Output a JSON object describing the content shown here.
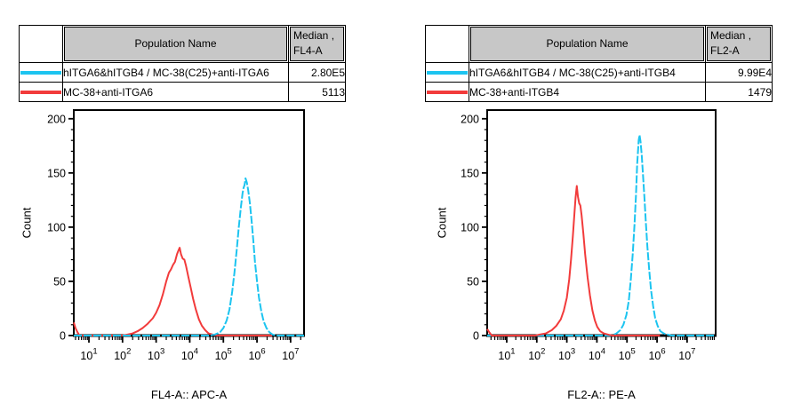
{
  "figure": {
    "background": "#ffffff"
  },
  "colors": {
    "cyan_series": "#1cc4f0",
    "red_series": "#f23b3b",
    "header_bg": "#c7c7c7",
    "axis": "#000000"
  },
  "panels": [
    {
      "table": {
        "header": {
          "population": "Population Name",
          "median_line1": "Median ,",
          "median_line2": "FL4-A"
        },
        "rows": [
          {
            "color": "#1cc4f0",
            "name": "hITGA6&hITGB4 / MC-38(C25)+anti-ITGA6",
            "median": "2.80E5"
          },
          {
            "color": "#f23b3b",
            "name": "MC-38+anti-ITGA6",
            "median": "5113"
          }
        ]
      }
    },
    {
      "table": {
        "header": {
          "population": "Population Name",
          "median_line1": "Median ,",
          "median_line2": "FL2-A"
        },
        "rows": [
          {
            "color": "#1cc4f0",
            "name": "hITGA6&hITGB4 / MC-38(C25)+anti-ITGB4",
            "median": "9.99E4"
          },
          {
            "color": "#f23b3b",
            "name": "MC-38+anti-ITGB4",
            "median": "1479"
          }
        ]
      }
    }
  ],
  "chart_data": [
    {
      "type": "line",
      "subtype": "flow-cytometry-histogram",
      "xlabel": "FL4-A:: APC-A",
      "ylabel": "Count",
      "x_scale": "log10",
      "x_log_range": [
        0.55,
        7.4
      ],
      "x_tick_exponents": [
        1,
        2,
        3,
        4,
        5,
        6,
        7
      ],
      "ylim": [
        0,
        208
      ],
      "y_ticks": [
        0,
        50,
        100,
        150,
        200
      ],
      "y_minor_step": 10,
      "grid": false,
      "legend_position": "table-above",
      "series": [
        {
          "name": "MC-38+anti-ITGA6",
          "color": "#f23b3b",
          "median": 5113,
          "line_style": "solid",
          "points": [
            [
              0.55,
              12
            ],
            [
              0.6,
              7
            ],
            [
              0.66,
              3
            ],
            [
              0.72,
              0
            ],
            [
              2.0,
              0
            ],
            [
              2.15,
              1
            ],
            [
              2.3,
              2
            ],
            [
              2.45,
              4
            ],
            [
              2.6,
              7
            ],
            [
              2.75,
              11
            ],
            [
              2.9,
              16
            ],
            [
              3.0,
              21
            ],
            [
              3.1,
              28
            ],
            [
              3.2,
              38
            ],
            [
              3.3,
              50
            ],
            [
              3.38,
              58
            ],
            [
              3.44,
              61
            ],
            [
              3.5,
              65
            ],
            [
              3.56,
              68
            ],
            [
              3.62,
              75
            ],
            [
              3.67,
              79
            ],
            [
              3.7,
              81
            ],
            [
              3.74,
              75
            ],
            [
              3.79,
              71
            ],
            [
              3.84,
              70
            ],
            [
              3.89,
              64
            ],
            [
              3.96,
              54
            ],
            [
              4.03,
              44
            ],
            [
              4.1,
              34
            ],
            [
              4.18,
              24
            ],
            [
              4.27,
              15
            ],
            [
              4.36,
              9
            ],
            [
              4.46,
              5
            ],
            [
              4.56,
              2
            ],
            [
              4.68,
              1
            ],
            [
              4.82,
              0
            ],
            [
              6.45,
              0
            ]
          ]
        },
        {
          "name": "hITGA6&hITGB4 / MC-38(C25)+anti-ITGA6",
          "color": "#1cc4f0",
          "median": 280000,
          "line_style": "dashed",
          "points": [
            [
              0.55,
              0
            ],
            [
              4.6,
              0
            ],
            [
              4.75,
              1
            ],
            [
              4.9,
              3
            ],
            [
              5.0,
              7
            ],
            [
              5.1,
              14
            ],
            [
              5.18,
              24
            ],
            [
              5.26,
              40
            ],
            [
              5.33,
              58
            ],
            [
              5.4,
              80
            ],
            [
              5.46,
              100
            ],
            [
              5.52,
              118
            ],
            [
              5.57,
              131
            ],
            [
              5.6,
              136
            ],
            [
              5.63,
              139
            ],
            [
              5.66,
              145
            ],
            [
              5.7,
              141
            ],
            [
              5.74,
              134
            ],
            [
              5.79,
              122
            ],
            [
              5.84,
              106
            ],
            [
              5.89,
              88
            ],
            [
              5.94,
              68
            ],
            [
              6.0,
              50
            ],
            [
              6.06,
              35
            ],
            [
              6.13,
              22
            ],
            [
              6.2,
              13
            ],
            [
              6.28,
              7
            ],
            [
              6.37,
              3
            ],
            [
              6.46,
              1
            ],
            [
              6.56,
              0
            ],
            [
              7.4,
              0
            ]
          ]
        }
      ]
    },
    {
      "type": "line",
      "subtype": "flow-cytometry-histogram",
      "xlabel": "FL2-A:: PE-A",
      "ylabel": "Count",
      "x_scale": "log10",
      "x_log_range": [
        0.35,
        7.95
      ],
      "x_tick_exponents": [
        1,
        2,
        3,
        4,
        5,
        6,
        7
      ],
      "ylim": [
        0,
        208
      ],
      "y_ticks": [
        0,
        50,
        100,
        150,
        200
      ],
      "y_minor_step": 10,
      "grid": false,
      "legend_position": "table-above",
      "series": [
        {
          "name": "hITGA6&hITGB4 / MC-38(C25)+anti-ITGB4",
          "color": "#1cc4f0",
          "median": 99900,
          "line_style": "dashed",
          "points": [
            [
              0.35,
              0
            ],
            [
              4.5,
              0
            ],
            [
              4.65,
              2
            ],
            [
              4.78,
              5
            ],
            [
              4.88,
              10
            ],
            [
              4.98,
              19
            ],
            [
              5.06,
              32
            ],
            [
              5.13,
              52
            ],
            [
              5.19,
              75
            ],
            [
              5.25,
              102
            ],
            [
              5.3,
              130
            ],
            [
              5.34,
              158
            ],
            [
              5.37,
              172
            ],
            [
              5.39,
              180
            ],
            [
              5.42,
              185
            ],
            [
              5.45,
              179
            ],
            [
              5.49,
              167
            ],
            [
              5.53,
              149
            ],
            [
              5.58,
              127
            ],
            [
              5.63,
              104
            ],
            [
              5.68,
              82
            ],
            [
              5.74,
              60
            ],
            [
              5.8,
              42
            ],
            [
              5.87,
              27
            ],
            [
              5.94,
              16
            ],
            [
              6.02,
              9
            ],
            [
              6.11,
              4
            ],
            [
              6.22,
              2
            ],
            [
              6.34,
              1
            ],
            [
              6.47,
              0
            ],
            [
              7.95,
              0
            ]
          ]
        },
        {
          "name": "MC-38+anti-ITGB4",
          "color": "#f23b3b",
          "median": 1479,
          "line_style": "solid",
          "points": [
            [
              0.35,
              6
            ],
            [
              0.42,
              3
            ],
            [
              0.5,
              0
            ],
            [
              1.95,
              0
            ],
            [
              2.1,
              1
            ],
            [
              2.3,
              2
            ],
            [
              2.5,
              5
            ],
            [
              2.65,
              9
            ],
            [
              2.8,
              15
            ],
            [
              2.9,
              23
            ],
            [
              3.0,
              35
            ],
            [
              3.08,
              52
            ],
            [
              3.14,
              70
            ],
            [
              3.2,
              92
            ],
            [
              3.25,
              112
            ],
            [
              3.29,
              127
            ],
            [
              3.33,
              138
            ],
            [
              3.37,
              128
            ],
            [
              3.41,
              122
            ],
            [
              3.45,
              120
            ],
            [
              3.49,
              111
            ],
            [
              3.55,
              94
            ],
            [
              3.61,
              75
            ],
            [
              3.69,
              54
            ],
            [
              3.77,
              37
            ],
            [
              3.85,
              23
            ],
            [
              3.93,
              14
            ],
            [
              4.01,
              8
            ],
            [
              4.11,
              4
            ],
            [
              4.23,
              2
            ],
            [
              4.36,
              1
            ],
            [
              4.5,
              0
            ],
            [
              6.1,
              0
            ]
          ]
        }
      ]
    }
  ]
}
